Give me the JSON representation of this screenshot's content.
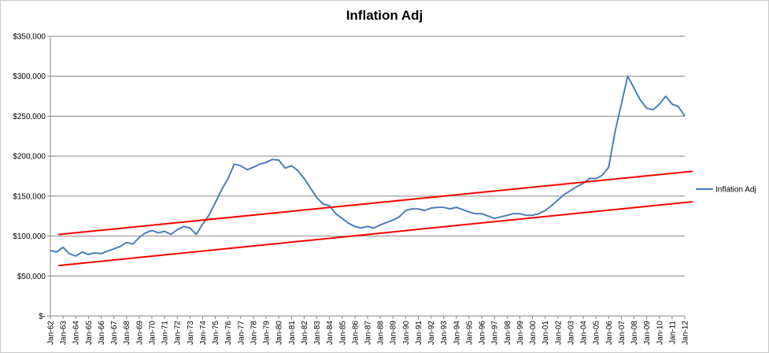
{
  "chart_data": {
    "type": "line",
    "title": "Inflation Adj",
    "xlabel": "",
    "ylabel": "",
    "ylim": [
      0,
      350000
    ],
    "y_ticks": [
      "$-",
      "$50,000",
      "$100,000",
      "$150,000",
      "$200,000",
      "$250,000",
      "$300,000",
      "$350,000"
    ],
    "x_ticks": [
      "Jan-62",
      "Jan-63",
      "Jan-64",
      "Jan-65",
      "Jan-66",
      "Jan-67",
      "Jan-68",
      "Jan-69",
      "Jan-70",
      "Jan-71",
      "Jan-72",
      "Jan-73",
      "Jan-74",
      "Jan-75",
      "Jan-76",
      "Jan-77",
      "Jan-78",
      "Jan-79",
      "Jan-80",
      "Jan-81",
      "Jan-82",
      "Jan-83",
      "Jan-84",
      "Jan-85",
      "Jan-86",
      "Jan-87",
      "Jan-88",
      "Jan-89",
      "Jan-90",
      "Jan-91",
      "Jan-92",
      "Jan-93",
      "Jan-94",
      "Jan-95",
      "Jan-96",
      "Jan-97",
      "Jan-98",
      "Jan-99",
      "Jan-00",
      "Jan-01",
      "Jan-02",
      "Jan-03",
      "Jan-04",
      "Jan-05",
      "Jan-06",
      "Jan-07",
      "Jan-08",
      "Jan-09",
      "Jan-10",
      "Jan-11",
      "Jan-12"
    ],
    "grid": "horizontal",
    "legend_position": "right",
    "series": [
      {
        "name": "Inflation Adj",
        "color": "#4a7ebb",
        "x": [
          "Jan-62",
          "Jul-62",
          "Jan-63",
          "Jul-63",
          "Jan-64",
          "Jul-64",
          "Jan-65",
          "Jul-65",
          "Jan-66",
          "Jul-66",
          "Jan-67",
          "Jul-67",
          "Jan-68",
          "Jul-68",
          "Jan-69",
          "Jul-69",
          "Jan-70",
          "Jul-70",
          "Jan-71",
          "Jul-71",
          "Jan-72",
          "Jul-72",
          "Jan-73",
          "Jul-73",
          "Jan-74",
          "Jul-74",
          "Jan-75",
          "Jul-75",
          "Jan-76",
          "Jul-76",
          "Jan-77",
          "Jul-77",
          "Jan-78",
          "Jul-78",
          "Jan-79",
          "Jul-79",
          "Jan-80",
          "Jul-80",
          "Jan-81",
          "Jul-81",
          "Jan-82",
          "Jul-82",
          "Jan-83",
          "Jul-83",
          "Jan-84",
          "Jul-84",
          "Jan-85",
          "Jul-85",
          "Jan-86",
          "Jul-86",
          "Jan-87",
          "Jul-87",
          "Jan-88",
          "Jul-88",
          "Jan-89",
          "Jul-89",
          "Jan-90",
          "Jul-90",
          "Jan-91",
          "Jul-91",
          "Jan-92",
          "Jul-92",
          "Jan-93",
          "Jul-93",
          "Jan-94",
          "Jul-94",
          "Jan-95",
          "Jul-95",
          "Jan-96",
          "Jul-96",
          "Jan-97",
          "Jul-97",
          "Jan-98",
          "Jul-98",
          "Jan-99",
          "Jul-99",
          "Jan-00",
          "Jul-00",
          "Jan-01",
          "Jul-01",
          "Jan-02",
          "Jul-02",
          "Jan-03",
          "Jul-03",
          "Jan-04",
          "Jul-04",
          "Jan-05",
          "Jul-05",
          "Jan-06",
          "Jul-06",
          "Jan-07",
          "Jul-07",
          "Jan-08",
          "Jul-08",
          "Jan-09",
          "Jul-09",
          "Jan-10",
          "Jul-10",
          "Jan-11",
          "Jul-11",
          "Jan-12"
        ],
        "values": [
          82000,
          80000,
          86000,
          78000,
          75000,
          80000,
          77000,
          79000,
          78000,
          81000,
          84000,
          87000,
          92000,
          90000,
          98000,
          104000,
          107000,
          104000,
          106000,
          102000,
          108000,
          112000,
          110000,
          102000,
          115000,
          126000,
          142000,
          158000,
          172000,
          190000,
          188000,
          183000,
          186000,
          190000,
          192000,
          196000,
          195000,
          185000,
          188000,
          182000,
          172000,
          160000,
          148000,
          140000,
          138000,
          128000,
          122000,
          116000,
          112000,
          110000,
          112000,
          110000,
          114000,
          117000,
          120000,
          124000,
          132000,
          134000,
          134000,
          132000,
          135000,
          136000,
          136000,
          134000,
          136000,
          133000,
          130000,
          128000,
          128000,
          125000,
          122000,
          124000,
          126000,
          128000,
          128000,
          126000,
          126000,
          128000,
          132000,
          138000,
          145000,
          152000,
          157000,
          162000,
          166000,
          172000,
          172000,
          176000,
          186000,
          230000,
          265000,
          300000,
          285000,
          270000,
          260000,
          258000,
          265000,
          275000,
          265000,
          262000,
          250000
        ]
      },
      {
        "name": "",
        "color": "#ff0000",
        "x": [
          "Jan-62",
          "Jan-12"
        ],
        "values": [
          101000,
          180000
        ],
        "extends_to_x": 1.0
      },
      {
        "name": "",
        "color": "#ff0000",
        "x": [
          "Jan-62",
          "Jan-12"
        ],
        "values": [
          62000,
          142000
        ],
        "extends_to_x": 1.0
      }
    ]
  }
}
